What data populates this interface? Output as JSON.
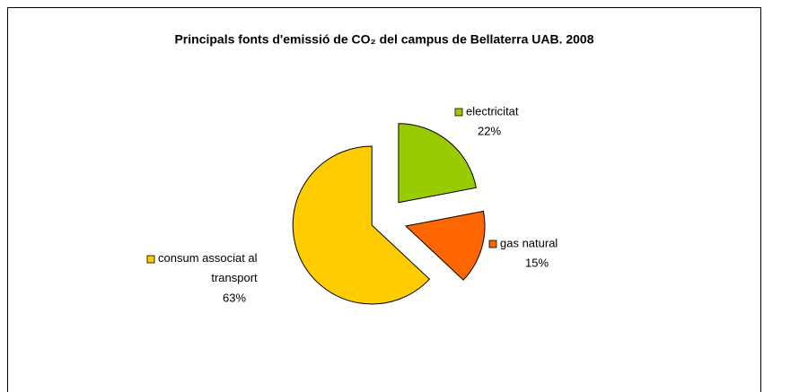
{
  "chart_data": {
    "type": "pie",
    "title": "Principals fonts d'emissió de CO₂ del campus de Bellaterra UAB. 2008",
    "categories": [
      "electricitat",
      "gas natural",
      "consum associat al transport"
    ],
    "values": [
      22,
      15,
      63
    ],
    "value_labels": [
      "22%",
      "15%",
      "63%"
    ],
    "colors": [
      "#99cc00",
      "#ff6600",
      "#ffcc00"
    ]
  }
}
